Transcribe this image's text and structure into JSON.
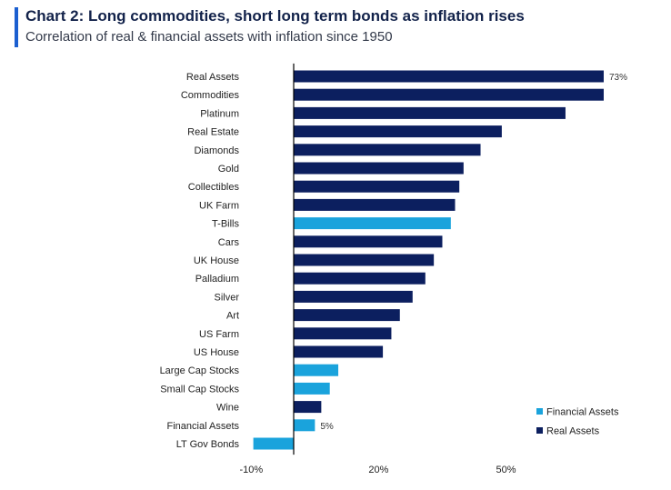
{
  "header": {
    "title": "Chart 2: Long commodities, short long term bonds as inflation rises",
    "subtitle": "Correlation of real & financial assets with inflation since 1950"
  },
  "colors": {
    "real": "#0c1f5f",
    "financial": "#1aa3dc",
    "accent": "#1b5fd0"
  },
  "chart_data": {
    "type": "bar",
    "orientation": "horizontal",
    "categories": [
      "Real Assets",
      "Commodities",
      "Platinum",
      "Real Estate",
      "Diamonds",
      "Gold",
      "Collectibles",
      "UK Farm",
      "T-Bills",
      "Cars",
      "UK House",
      "Palladium",
      "Silver",
      "Art",
      "US Farm",
      "US House",
      "Large Cap Stocks",
      "Small Cap Stocks",
      "Wine",
      "Financial Assets",
      "LT Gov Bonds"
    ],
    "values": [
      73,
      73,
      64,
      49,
      44,
      40,
      39,
      38,
      37,
      35,
      33,
      31,
      28,
      25,
      23,
      21,
      10.5,
      8.5,
      6.5,
      5,
      -9.5
    ],
    "groups": [
      "real",
      "real",
      "real",
      "real",
      "real",
      "real",
      "real",
      "real",
      "financial",
      "real",
      "real",
      "real",
      "real",
      "real",
      "real",
      "real",
      "financial",
      "financial",
      "real",
      "financial",
      "financial"
    ],
    "data_labels": [
      {
        "category": "Real Assets",
        "text": "73%"
      },
      {
        "category": "Financial Assets",
        "text": "5%"
      }
    ],
    "xlim": [
      -10,
      73
    ],
    "x_ticks": [
      {
        "value": -10,
        "label": "-10%"
      },
      {
        "value": 20,
        "label": "20%"
      },
      {
        "value": 50,
        "label": "50%"
      }
    ],
    "legend": {
      "placement": "bottom-right",
      "entries": [
        {
          "name": "Financial Assets",
          "group": "financial"
        },
        {
          "name": "Real Assets",
          "group": "real"
        }
      ]
    }
  }
}
